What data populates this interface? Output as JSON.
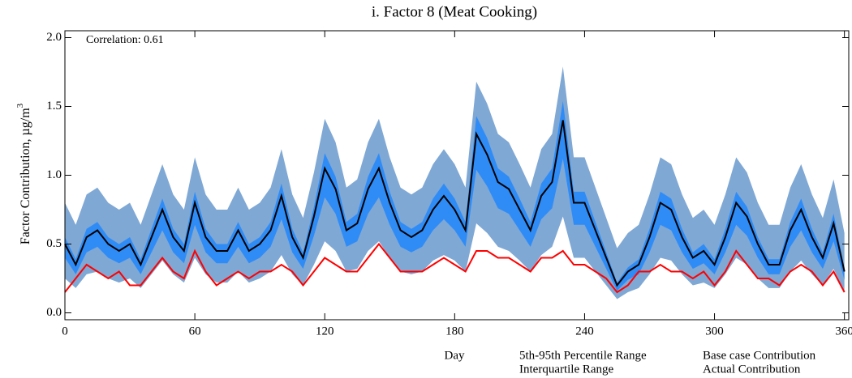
{
  "chart_data": {
    "type": "band-line",
    "title": "i.  Factor 8 (Meat Cooking)",
    "y_label": "Factor Contribution,  µg/m",
    "y_label_superscript": "3",
    "x_label": "Day",
    "annotation": "Correlation: 0.61",
    "xlim": [
      0,
      362
    ],
    "ylim": [
      -0.05,
      2.05
    ],
    "xticks": [
      0,
      60,
      120,
      180,
      240,
      300,
      360
    ],
    "yticks": [
      {
        "value": 0,
        "label": "0.0"
      },
      {
        "value": 0.5,
        "label": "0.5"
      },
      {
        "value": 1,
        "label": "1.0"
      },
      {
        "value": 1.5,
        "label": "1.5"
      },
      {
        "value": 2,
        "label": "2.0"
      }
    ],
    "x": [
      0,
      5,
      10,
      15,
      20,
      25,
      30,
      35,
      40,
      45,
      50,
      55,
      60,
      65,
      70,
      75,
      80,
      85,
      90,
      95,
      100,
      105,
      110,
      115,
      120,
      125,
      130,
      135,
      140,
      145,
      150,
      155,
      160,
      165,
      170,
      175,
      180,
      185,
      190,
      195,
      200,
      205,
      210,
      215,
      220,
      225,
      230,
      235,
      240,
      245,
      250,
      255,
      260,
      265,
      270,
      275,
      280,
      285,
      290,
      295,
      300,
      305,
      310,
      315,
      320,
      325,
      330,
      335,
      340,
      345,
      350,
      355,
      360
    ],
    "bands": [
      {
        "name": "5th-95th Percentile Range",
        "color": "#7fa8d4",
        "lower": [
          0.25,
          0.18,
          0.28,
          0.3,
          0.25,
          0.22,
          0.25,
          0.18,
          0.28,
          0.38,
          0.28,
          0.22,
          0.4,
          0.28,
          0.22,
          0.22,
          0.3,
          0.22,
          0.25,
          0.3,
          0.42,
          0.28,
          0.2,
          0.35,
          0.52,
          0.45,
          0.3,
          0.32,
          0.45,
          0.52,
          0.4,
          0.3,
          0.28,
          0.3,
          0.38,
          0.42,
          0.38,
          0.3,
          0.65,
          0.58,
          0.48,
          0.45,
          0.38,
          0.3,
          0.42,
          0.48,
          0.7,
          0.4,
          0.4,
          0.3,
          0.2,
          0.1,
          0.15,
          0.18,
          0.28,
          0.4,
          0.38,
          0.28,
          0.2,
          0.22,
          0.18,
          0.28,
          0.4,
          0.35,
          0.25,
          0.18,
          0.18,
          0.3,
          0.38,
          0.28,
          0.2,
          0.32,
          0.15
        ],
        "upper": [
          0.8,
          0.64,
          0.86,
          0.91,
          0.8,
          0.75,
          0.8,
          0.64,
          0.86,
          1.08,
          0.86,
          0.75,
          1.13,
          0.86,
          0.75,
          0.75,
          0.91,
          0.75,
          0.8,
          0.91,
          1.19,
          0.86,
          0.69,
          1.02,
          1.41,
          1.24,
          0.91,
          0.97,
          1.24,
          1.41,
          1.13,
          0.91,
          0.86,
          0.91,
          1.08,
          1.19,
          1.08,
          0.91,
          1.68,
          1.52,
          1.3,
          1.24,
          1.08,
          0.91,
          1.19,
          1.3,
          1.79,
          1.13,
          1.13,
          0.91,
          0.69,
          0.47,
          0.58,
          0.64,
          0.86,
          1.13,
          1.08,
          0.86,
          0.69,
          0.75,
          0.64,
          0.86,
          1.13,
          1.02,
          0.8,
          0.64,
          0.64,
          0.91,
          1.08,
          0.86,
          0.69,
          0.97,
          0.58
        ]
      },
      {
        "name": "Interquartile Range",
        "color": "#2f8cf6",
        "lower": [
          0.4,
          0.28,
          0.44,
          0.48,
          0.4,
          0.36,
          0.4,
          0.28,
          0.44,
          0.6,
          0.44,
          0.36,
          0.64,
          0.44,
          0.36,
          0.36,
          0.48,
          0.36,
          0.4,
          0.48,
          0.68,
          0.44,
          0.32,
          0.56,
          0.84,
          0.72,
          0.48,
          0.52,
          0.72,
          0.84,
          0.64,
          0.48,
          0.44,
          0.48,
          0.6,
          0.68,
          0.6,
          0.48,
          1.04,
          0.92,
          0.76,
          0.72,
          0.6,
          0.48,
          0.68,
          0.76,
          1.12,
          0.64,
          0.64,
          0.48,
          0.32,
          0.16,
          0.24,
          0.28,
          0.44,
          0.64,
          0.6,
          0.44,
          0.32,
          0.36,
          0.28,
          0.44,
          0.64,
          0.56,
          0.4,
          0.28,
          0.28,
          0.48,
          0.6,
          0.44,
          0.32,
          0.52,
          0.24
        ],
        "upper": [
          0.55,
          0.39,
          0.61,
          0.66,
          0.55,
          0.5,
          0.55,
          0.39,
          0.61,
          0.83,
          0.61,
          0.5,
          0.88,
          0.61,
          0.5,
          0.5,
          0.66,
          0.5,
          0.55,
          0.66,
          0.94,
          0.61,
          0.44,
          0.77,
          1.16,
          0.99,
          0.66,
          0.72,
          0.99,
          1.16,
          0.88,
          0.66,
          0.61,
          0.66,
          0.83,
          0.94,
          0.83,
          0.66,
          1.43,
          1.27,
          1.05,
          0.99,
          0.83,
          0.66,
          0.94,
          1.05,
          1.54,
          0.88,
          0.88,
          0.66,
          0.44,
          0.22,
          0.33,
          0.39,
          0.61,
          0.88,
          0.83,
          0.61,
          0.44,
          0.5,
          0.39,
          0.61,
          0.88,
          0.77,
          0.55,
          0.39,
          0.39,
          0.66,
          0.83,
          0.61,
          0.44,
          0.72,
          0.33
        ]
      }
    ],
    "series": [
      {
        "name": "Base case Contribution",
        "color": "#000000",
        "values": [
          0.5,
          0.35,
          0.55,
          0.6,
          0.5,
          0.45,
          0.5,
          0.35,
          0.55,
          0.75,
          0.55,
          0.45,
          0.8,
          0.55,
          0.45,
          0.45,
          0.6,
          0.45,
          0.5,
          0.6,
          0.85,
          0.55,
          0.4,
          0.7,
          1.05,
          0.9,
          0.6,
          0.65,
          0.9,
          1.05,
          0.8,
          0.6,
          0.55,
          0.6,
          0.75,
          0.85,
          0.75,
          0.6,
          1.3,
          1.15,
          0.95,
          0.9,
          0.75,
          0.6,
          0.85,
          0.95,
          1.4,
          0.8,
          0.8,
          0.6,
          0.4,
          0.2,
          0.3,
          0.35,
          0.55,
          0.8,
          0.75,
          0.55,
          0.4,
          0.45,
          0.35,
          0.55,
          0.8,
          0.7,
          0.5,
          0.35,
          0.35,
          0.6,
          0.75,
          0.55,
          0.4,
          0.65,
          0.3
        ]
      },
      {
        "name": "Actual Contribution",
        "color": "#ff0000",
        "values": [
          0.15,
          0.25,
          0.35,
          0.3,
          0.25,
          0.3,
          0.2,
          0.2,
          0.3,
          0.4,
          0.3,
          0.25,
          0.45,
          0.3,
          0.2,
          0.25,
          0.3,
          0.25,
          0.3,
          0.3,
          0.35,
          0.3,
          0.2,
          0.3,
          0.4,
          0.35,
          0.3,
          0.3,
          0.4,
          0.5,
          0.4,
          0.3,
          0.3,
          0.3,
          0.35,
          0.4,
          0.35,
          0.3,
          0.45,
          0.45,
          0.4,
          0.4,
          0.35,
          0.3,
          0.4,
          0.4,
          0.45,
          0.35,
          0.35,
          0.3,
          0.25,
          0.15,
          0.2,
          0.3,
          0.3,
          0.35,
          0.3,
          0.3,
          0.25,
          0.3,
          0.2,
          0.3,
          0.45,
          0.35,
          0.25,
          0.25,
          0.2,
          0.3,
          0.35,
          0.3,
          0.2,
          0.3,
          0.15
        ]
      }
    ]
  }
}
